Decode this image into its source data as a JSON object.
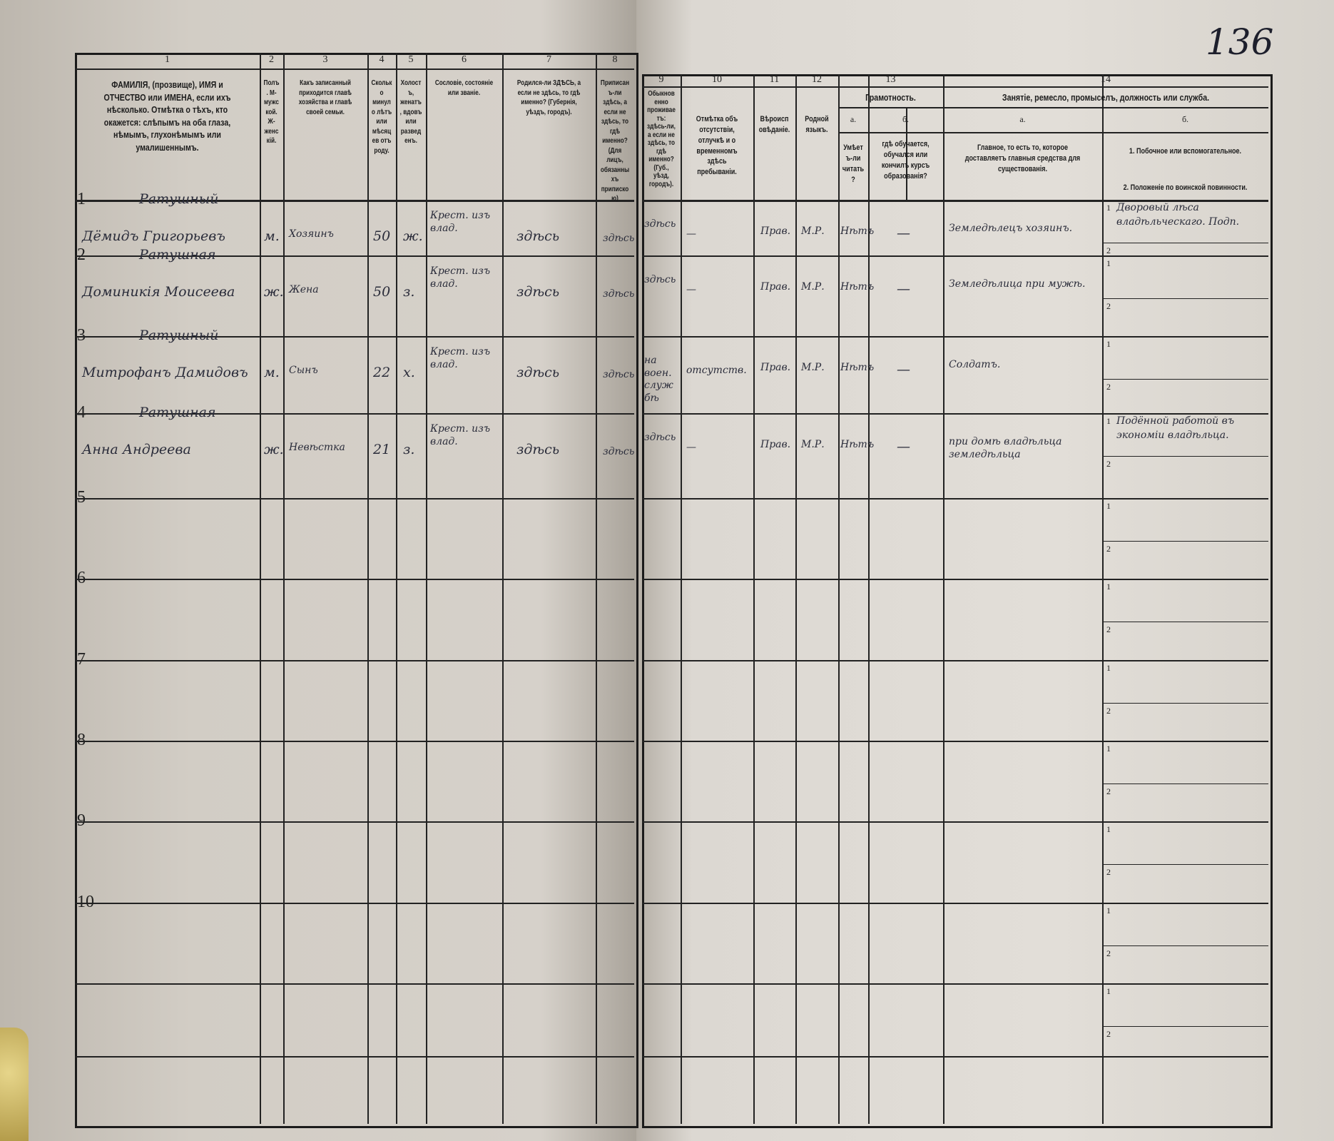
{
  "page_number": "136",
  "columns_left": [
    {
      "num": "1",
      "header": "ФАМИЛІЯ, (прозвище), ИМЯ и ОТЧЕСТВО или ИМЕНА, если ихъ нѣсколько. Отмѣтка о тѣхъ, кто окажется: слѣпымъ на оба глаза, нѣмымъ, глухонѣмымъ или умалишеннымъ."
    },
    {
      "num": "2",
      "header": "Полъ. М-мужской. Ж-женскій."
    },
    {
      "num": "3",
      "header": "Какъ записанный приходится главѣ хозяйства и главѣ своей семьи."
    },
    {
      "num": "4",
      "header": "Сколько минуло лѣтъ или мѣсяцев отъ роду."
    },
    {
      "num": "5",
      "header": "Холостъ, женатъ, вдовъ или разведенъ."
    },
    {
      "num": "6",
      "header": "Сословіе, состояніе или званіе."
    },
    {
      "num": "7",
      "header": "Родился-ли ЗДѢСЬ, а если не здѣсь, то гдѣ именно? (Губернія, уѣздъ, городъ)."
    },
    {
      "num": "8",
      "header": "Приписанъ-ли здѣсь, а если не здѣсь, то гдѣ именно? (Для лицъ, обязанныхъ припискою)"
    }
  ],
  "columns_right": [
    {
      "num": "9",
      "header": "Обыкновенно проживаетъ: здѣсь-ли, а если не здѣсь, то гдѣ именно? (Губ., уѣзд, городъ)."
    },
    {
      "num": "10",
      "header": "Отмѣтка объ отсутствіи, отлучкѣ и о временномъ здѣсь пребываніи."
    },
    {
      "num": "11",
      "header": "Вѣроисповѣданіе."
    },
    {
      "num": "12",
      "header": "Родной языкъ."
    },
    {
      "num": "13",
      "group": "Грамотность.",
      "a": "а.",
      "a_text": "Умѣетъ-ли читать?",
      "b": "б.",
      "b_text": "гдѣ обучается, обучался или кончилъ курсъ образованія?"
    },
    {
      "num": "14",
      "group": "Занятіе, ремесло, промыселъ, должность или служба.",
      "a": "а.",
      "a_text": "Главное, то есть то, которое доставляетъ главныя средства для существованія.",
      "b": "б.",
      "b1": "1. Побочное или вспомогательное.",
      "b2": "2. Положеніе по воинской повинности."
    }
  ],
  "rows": [
    {
      "n": "1",
      "surname": "Ратушный",
      "name": "Дёмидъ Григорьевъ",
      "sex": "м.",
      "relation": "Хозяинъ",
      "age": "50",
      "marital": "ж.",
      "estate": "Крест. изъ влад.",
      "born": "здѣсь",
      "registered": "здѣсь",
      "resides": "здѣсь",
      "absence": "—",
      "religion": "Прав.",
      "language": "М.Р.",
      "literate": "Нѣтъ",
      "schooling": "—",
      "occupation": "Земледѣлецъ хозяинъ.",
      "side_job": "Дворовый лѣса владѣльческаго. Подп.",
      "military": ""
    },
    {
      "n": "2",
      "surname": "Ратушная",
      "name": "Доминикія Моисеева",
      "sex": "ж.",
      "relation": "Жена",
      "age": "50",
      "marital": "з.",
      "estate": "Крест. изъ влад.",
      "born": "здѣсь",
      "registered": "здѣсь",
      "resides": "здѣсь",
      "absence": "—",
      "religion": "Прав.",
      "language": "М.Р.",
      "literate": "Нѣтъ",
      "schooling": "—",
      "occupation": "Земледѣлица при мужѣ.",
      "side_job": "",
      "military": ""
    },
    {
      "n": "3",
      "surname": "Ратушный",
      "name": "Митрофанъ Дамидовъ",
      "sex": "м.",
      "relation": "Сынъ",
      "age": "22",
      "marital": "х.",
      "estate": "Крест. изъ влад.",
      "born": "здѣсь",
      "registered": "здѣсь",
      "resides": "на воен. службѣ",
      "absence": "отсутств.",
      "religion": "Прав.",
      "language": "М.Р.",
      "literate": "Нѣтъ",
      "schooling": "—",
      "occupation": "Солдатъ.",
      "side_job": "",
      "military": ""
    },
    {
      "n": "4",
      "surname": "Ратушная",
      "name": "Анна Андреева",
      "sex": "ж.",
      "relation": "Невѣстка",
      "age": "21",
      "marital": "з.",
      "estate": "Крест. изъ влад.",
      "born": "здѣсь",
      "registered": "здѣсь",
      "resides": "здѣсь",
      "absence": "—",
      "religion": "Прав.",
      "language": "М.Р.",
      "literate": "Нѣтъ",
      "schooling": "—",
      "occupation": "при домѣ владѣльца земледѣльца",
      "side_job": "Подённой работой въ экономіи владѣльца.",
      "military": ""
    },
    {
      "n": "5"
    },
    {
      "n": "6"
    },
    {
      "n": "7"
    },
    {
      "n": "8"
    },
    {
      "n": "9"
    },
    {
      "n": "10"
    },
    {
      "n": ""
    }
  ],
  "colors": {
    "paper": "#dcd8d2",
    "ink": "#2a2c3a",
    "print": "#1c1c1c"
  }
}
